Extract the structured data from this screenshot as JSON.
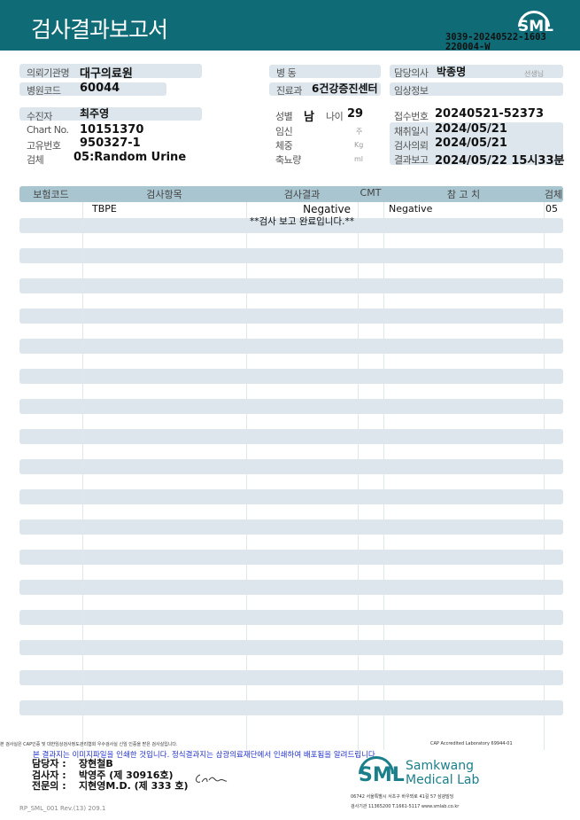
{
  "header": {
    "title": "검사결과보고서",
    "logo": "SML",
    "doc_id_line1": "3039-20240522-1603",
    "doc_id_line2": "220004-W"
  },
  "patient": {
    "institution_label": "의뢰기관명",
    "institution": "대구의료원",
    "hospital_code_label": "병원코드",
    "hospital_code": "60044",
    "ward_label": "병 동",
    "ward": "",
    "dept_label": "진료과",
    "dept": "6건강증진센터",
    "doctor_label": "담당의사",
    "doctor": "박종명",
    "doctor_suffix": "선생님",
    "clinical_label": "임상정보",
    "clinical": "",
    "name_label": "수진자",
    "name": "최주영",
    "chart_label": "Chart No.",
    "chart": "10151370",
    "id_label": "고유번호",
    "id": "950327-1",
    "specimen_label": "검체",
    "specimen": "05:Random Urine",
    "sex_label": "성별",
    "sex": "남",
    "age_label": "나이",
    "age": "29",
    "pregnancy_label": "임신",
    "pregnancy_unit": "주",
    "weight_label": "체중",
    "weight_unit": "Kg",
    "urine_label": "축뇨량",
    "urine_unit": "ml",
    "receipt_label": "접수번호",
    "receipt": "20240521-52373",
    "collected_label": "채취일시",
    "collected": "2024/05/21",
    "requested_label": "검사의뢰",
    "requested": "2024/05/21",
    "reported_label": "결과보고",
    "reported": "2024/05/22 15시33분"
  },
  "table": {
    "headers": [
      "보험코드",
      "검사항목",
      "검사결과",
      "CMT",
      "참 고 치",
      "검체"
    ],
    "rows": [
      {
        "code": "",
        "item": "TBPE",
        "result": "Negative",
        "cmt": "",
        "ref": "Negative",
        "specimen": "05"
      }
    ],
    "note": "**검사 보고 완료입니다.**"
  },
  "footer": {
    "fine_print": "본 검사실은 CAP인증 및 대한임상검사정도관리협회 우수검사실 신임 인증을 받은 검사실입니다.",
    "cap": "CAP Accredited Laboratory 69944-01",
    "notice": "본 결과지는 이미지파일을 인쇄한 것입니다. 정식결과지는 삼광의료재단에서 인쇄하여 배포됨을 알려드립니다.",
    "manager_label": "담당자 :",
    "manager": "장현철B",
    "tester_label": "검사자 :",
    "tester": "박영주 (제 30916호)",
    "specialist_label": "전문의 :",
    "specialist": "지현영M.D. (제 333 호)",
    "lab_name_1": "Samkwang",
    "lab_name_2": "Medical Lab",
    "lab_logo": "SML",
    "address": "06742 서울특별시 서초구 바우뫼로 41길 57 삼광빌딩",
    "contact": "검사기관 11365200 T.1661-5117 www.smlab.co.kr",
    "form_id": "RP_SML_001 Rev.(13) 209.1"
  }
}
